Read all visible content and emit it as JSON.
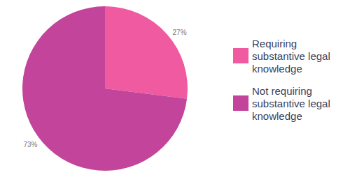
{
  "chart_data": {
    "type": "pie",
    "categories": [
      "Requiring substantive legal knowledge",
      "Not requiring substantive legal knowledge"
    ],
    "values": [
      27,
      73
    ],
    "value_labels": [
      "27%",
      "73%"
    ],
    "colors": [
      "#ef5aa0",
      "#c2449b"
    ],
    "data_labels": true,
    "legend": "right"
  }
}
